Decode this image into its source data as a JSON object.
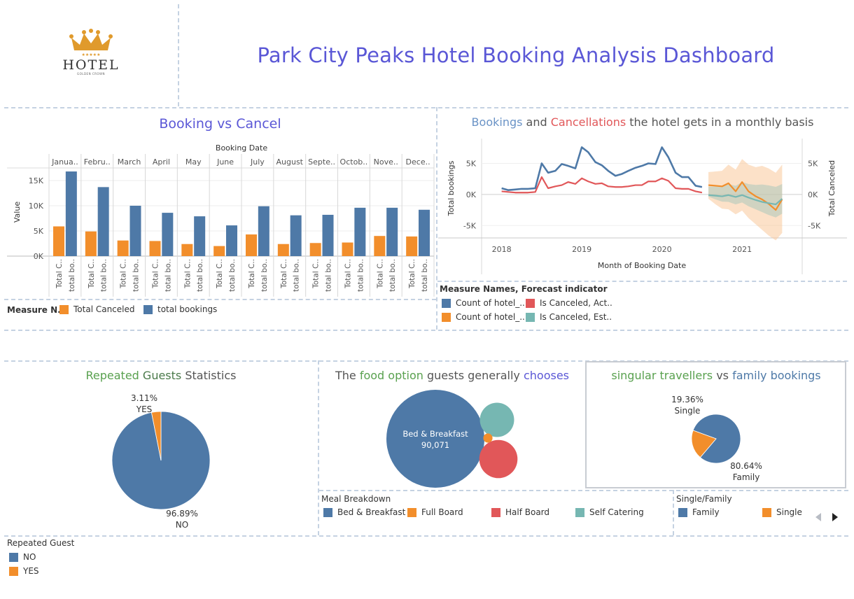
{
  "header": {
    "logo_word": "HOTEL",
    "logo_sub": "GOLDEN CROWN",
    "title": "Park City Peaks Hotel Booking Analysis Dashboard"
  },
  "colors": {
    "blue": "#4e79a7",
    "orange": "#f28e2b",
    "red": "#e15759",
    "teal": "#76b7b2",
    "title_purple": "#5a57d6",
    "green": "#59a14f"
  },
  "bookings_cancel": {
    "title": "Booking vs Cancel",
    "legend_title": "Measure N..",
    "legend": [
      {
        "label": "Total Canceled",
        "color": "#f28e2b"
      },
      {
        "label": "total bookings",
        "color": "#4e79a7"
      }
    ]
  },
  "monthly": {
    "title_parts": [
      "Bookings",
      " and ",
      "Cancellations",
      " the hotel gets in a monthly basis"
    ],
    "legend_title": "Measure Names, Forecast indicator",
    "legend": [
      {
        "label": "Count of hotel_..",
        "color": "#4e79a7"
      },
      {
        "label": "Is Canceled, Act..",
        "color": "#e15759"
      },
      {
        "label": "Count of hotel_..",
        "color": "#f28e2b"
      },
      {
        "label": "Is Canceled, Est..",
        "color": "#76b7b2"
      }
    ]
  },
  "repeated": {
    "title_parts": [
      "Repeated",
      " Guests",
      " Statistics"
    ],
    "legend_title": "Repeated Guest",
    "legend": [
      {
        "label": "NO",
        "color": "#4e79a7"
      },
      {
        "label": "YES",
        "color": "#f28e2b"
      }
    ]
  },
  "food": {
    "title_parts": [
      "The ",
      "food option",
      " guests generally ",
      "chooses"
    ],
    "legend_title": "Meal Breakdown",
    "legend": [
      {
        "label": "Bed & Breakfast",
        "color": "#4e79a7"
      },
      {
        "label": "Full Board",
        "color": "#f28e2b"
      },
      {
        "label": "Half Board",
        "color": "#e15759"
      },
      {
        "label": "Self Catering",
        "color": "#76b7b2"
      }
    ]
  },
  "travellers": {
    "title_parts": [
      "singular travellers",
      " vs ",
      "family bookings"
    ],
    "legend_title": "Single/Family",
    "legend": [
      {
        "label": "Family",
        "color": "#4e79a7"
      },
      {
        "label": "Single",
        "color": "#f28e2b"
      }
    ]
  },
  "chart_data": [
    {
      "type": "bar",
      "title": "Booking vs Cancel",
      "header_label": "Booking Date",
      "ylabel": "Value",
      "ylim": [
        0,
        17500
      ],
      "yticks": [
        0,
        5000,
        10000,
        15000
      ],
      "ytick_labels": [
        "0K",
        "5K",
        "10K",
        "15K"
      ],
      "categories": [
        "Janua..",
        "Febru..",
        "March",
        "April",
        "May",
        "June",
        "July",
        "August",
        "Septe..",
        "Octob..",
        "Nove..",
        "Dece.."
      ],
      "bar_labels": [
        "Total C..",
        "total bo.."
      ],
      "series": [
        {
          "name": "Total Canceled",
          "color": "#f28e2b",
          "values": [
            5900,
            4900,
            3100,
            3000,
            2400,
            2000,
            4300,
            2400,
            2600,
            2700,
            4000,
            3900
          ]
        },
        {
          "name": "total bookings",
          "color": "#4e79a7",
          "values": [
            16800,
            13700,
            10000,
            8600,
            7900,
            6100,
            9900,
            8100,
            8200,
            9600,
            9600,
            9200
          ]
        }
      ]
    },
    {
      "type": "line",
      "title": "Bookings and Cancellations the hotel gets in a monthly basis",
      "xlabel": "Month of Booking Date",
      "ylabel_left": "Total bookings",
      "ylabel_right": "Total Canceled",
      "x_ticks": [
        "2018",
        "2019",
        "2020",
        "2021"
      ],
      "x_tick_values": [
        2018.0,
        2019.0,
        2020.0,
        2021.0
      ],
      "xlim": [
        2017.75,
        2021.75
      ],
      "ylim": [
        -7000,
        9000
      ],
      "yticks": [
        -5000,
        0,
        5000
      ],
      "ytick_labels": [
        "-5K",
        "0K",
        "5K"
      ],
      "series": [
        {
          "name": "Count of hotel_.. (Actual)",
          "color": "#4e79a7",
          "x": [
            2018.0,
            2018.08,
            2018.17,
            2018.25,
            2018.33,
            2018.42,
            2018.5,
            2018.58,
            2018.67,
            2018.75,
            2018.83,
            2018.92,
            2019.0,
            2019.08,
            2019.17,
            2019.25,
            2019.33,
            2019.42,
            2019.5,
            2019.58,
            2019.67,
            2019.75,
            2019.83,
            2019.92,
            2020.0,
            2020.08,
            2020.17,
            2020.25,
            2020.33,
            2020.42,
            2020.5
          ],
          "y": [
            1000,
            700,
            800,
            900,
            900,
            1000,
            5000,
            3500,
            3800,
            4900,
            4600,
            4200,
            7600,
            6800,
            5200,
            4700,
            3800,
            3000,
            3300,
            3800,
            4300,
            4600,
            5000,
            4900,
            7600,
            6000,
            3500,
            2800,
            2800,
            1400,
            1200
          ]
        },
        {
          "name": "Is Canceled, Act..",
          "color": "#e15759",
          "x": [
            2018.0,
            2018.08,
            2018.17,
            2018.25,
            2018.33,
            2018.42,
            2018.5,
            2018.58,
            2018.67,
            2018.75,
            2018.83,
            2018.92,
            2019.0,
            2019.08,
            2019.17,
            2019.25,
            2019.33,
            2019.42,
            2019.5,
            2019.58,
            2019.67,
            2019.75,
            2019.83,
            2019.92,
            2020.0,
            2020.08,
            2020.17,
            2020.25,
            2020.33,
            2020.42,
            2020.5
          ],
          "y": [
            500,
            400,
            300,
            300,
            300,
            400,
            2800,
            1000,
            1300,
            1500,
            2000,
            1700,
            2600,
            2100,
            1700,
            1800,
            1300,
            1200,
            1200,
            1300,
            1500,
            1500,
            2100,
            2100,
            2600,
            2200,
            1000,
            900,
            900,
            500,
            300
          ]
        },
        {
          "name": "Count of hotel_.. (Forecast)",
          "color": "#f28e2b",
          "x": [
            2020.58,
            2020.67,
            2020.75,
            2020.83,
            2020.92,
            2021.0,
            2021.08,
            2021.17,
            2021.25,
            2021.33,
            2021.42,
            2021.5
          ],
          "y": [
            1500,
            1400,
            1300,
            1800,
            500,
            2000,
            500,
            -300,
            -800,
            -1500,
            -2500,
            -800
          ]
        },
        {
          "name": "Is Canceled, Est..",
          "color": "#76b7b2",
          "x": [
            2020.58,
            2020.67,
            2020.75,
            2020.83,
            2020.92,
            2021.0,
            2021.08,
            2021.17,
            2021.25,
            2021.33,
            2021.42,
            2021.5
          ],
          "y": [
            -100,
            -200,
            -300,
            -100,
            -400,
            -100,
            -500,
            -900,
            -1200,
            -1400,
            -1600,
            -700
          ]
        }
      ],
      "confidence_band": {
        "x": [
          2020.58,
          2020.67,
          2020.75,
          2020.83,
          2020.92,
          2021.0,
          2021.08,
          2021.17,
          2021.25,
          2021.33,
          2021.42,
          2021.5
        ],
        "upper": [
          3600,
          3700,
          3800,
          4800,
          4000,
          5700,
          4800,
          4400,
          4600,
          4200,
          3500,
          4800
        ],
        "lower": [
          -700,
          -1600,
          -2300,
          -2400,
          -3200,
          -2600,
          -3800,
          -4800,
          -5700,
          -6600,
          -7400,
          -6200
        ]
      }
    },
    {
      "type": "pie",
      "title": "Repeated Guests Statistics",
      "slices": [
        {
          "label": "NO",
          "value": 96.89,
          "text": "96.89%",
          "color": "#4e79a7"
        },
        {
          "label": "YES",
          "value": 3.11,
          "text": "3.11%",
          "color": "#f28e2b"
        }
      ]
    },
    {
      "type": "bubble",
      "title": "The food option guests generally chooses",
      "bubbles": [
        {
          "label": "Bed & Breakfast",
          "value": 90071,
          "value_text": "90,071",
          "color": "#4e79a7"
        },
        {
          "label": "Half Board",
          "value": 13700,
          "color": "#e15759"
        },
        {
          "label": "Self Catering",
          "value": 11000,
          "color": "#76b7b2"
        },
        {
          "label": "Full Board",
          "value": 800,
          "color": "#f28e2b"
        }
      ]
    },
    {
      "type": "pie",
      "title": "singular travellers vs family bookings",
      "slices": [
        {
          "label": "Family",
          "value": 80.64,
          "text": "80.64%",
          "color": "#4e79a7"
        },
        {
          "label": "Single",
          "value": 19.36,
          "text": "19.36%",
          "color": "#f28e2b"
        }
      ]
    }
  ]
}
